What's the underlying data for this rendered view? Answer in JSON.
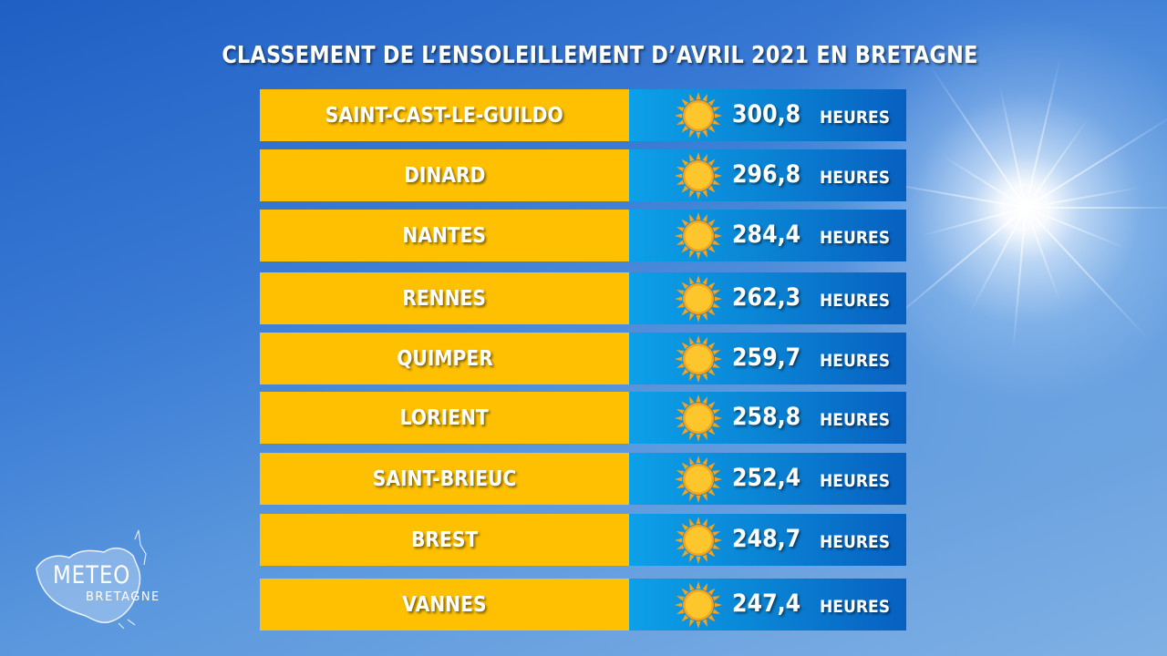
{
  "chart_data": {
    "type": "bar",
    "title": "CLASSEMENT DE L’ENSOLEILLEMENT D’AVRIL 2021 EN BRETAGNE",
    "unit": "HEURES",
    "categories": [
      "SAINT-CAST-LE-GUILDO",
      "DINARD",
      "NANTES",
      "RENNES",
      "QUIMPER",
      "LORIENT",
      "SAINT-BRIEUC",
      "BREST",
      "VANNES"
    ],
    "values": [
      300.8,
      296.8,
      284.4,
      262.3,
      259.7,
      258.8,
      252.4,
      248.7,
      247.4
    ],
    "value_labels": [
      "300,8",
      "296,8",
      "284,4",
      "262,3",
      "259,7",
      "258,8",
      "252,4",
      "248,7",
      "247,4"
    ],
    "icon": "sun-icon",
    "colors": {
      "city_band": "#fec001",
      "value_band": "#0a86d6",
      "sun": "#fdbf23",
      "background": "#3a7bd5"
    }
  },
  "logo": {
    "line1": "METEO",
    "line2": "BRETAGNE"
  }
}
